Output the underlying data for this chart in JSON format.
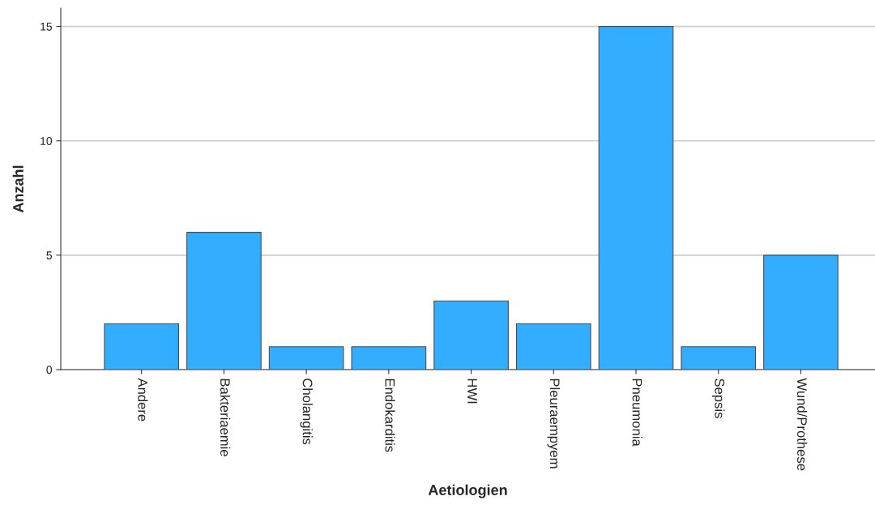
{
  "chart_data": {
    "type": "bar",
    "xlabel": "Aetiologien",
    "ylabel": "Anzahl",
    "categories": [
      "Andere",
      "Bakteriaemie",
      "Cholangitis",
      "Endokarditis",
      "HWI",
      "Pleuraempyem",
      "Pneumonia",
      "Sepsis",
      "Wund/Prothese"
    ],
    "values": [
      2,
      6,
      1,
      1,
      3,
      2,
      15,
      1,
      5
    ],
    "color": "#33adff",
    "ylim": [
      0,
      15.8
    ],
    "yticks": [
      0,
      5,
      10,
      15
    ],
    "grid": "y",
    "legend": false
  }
}
